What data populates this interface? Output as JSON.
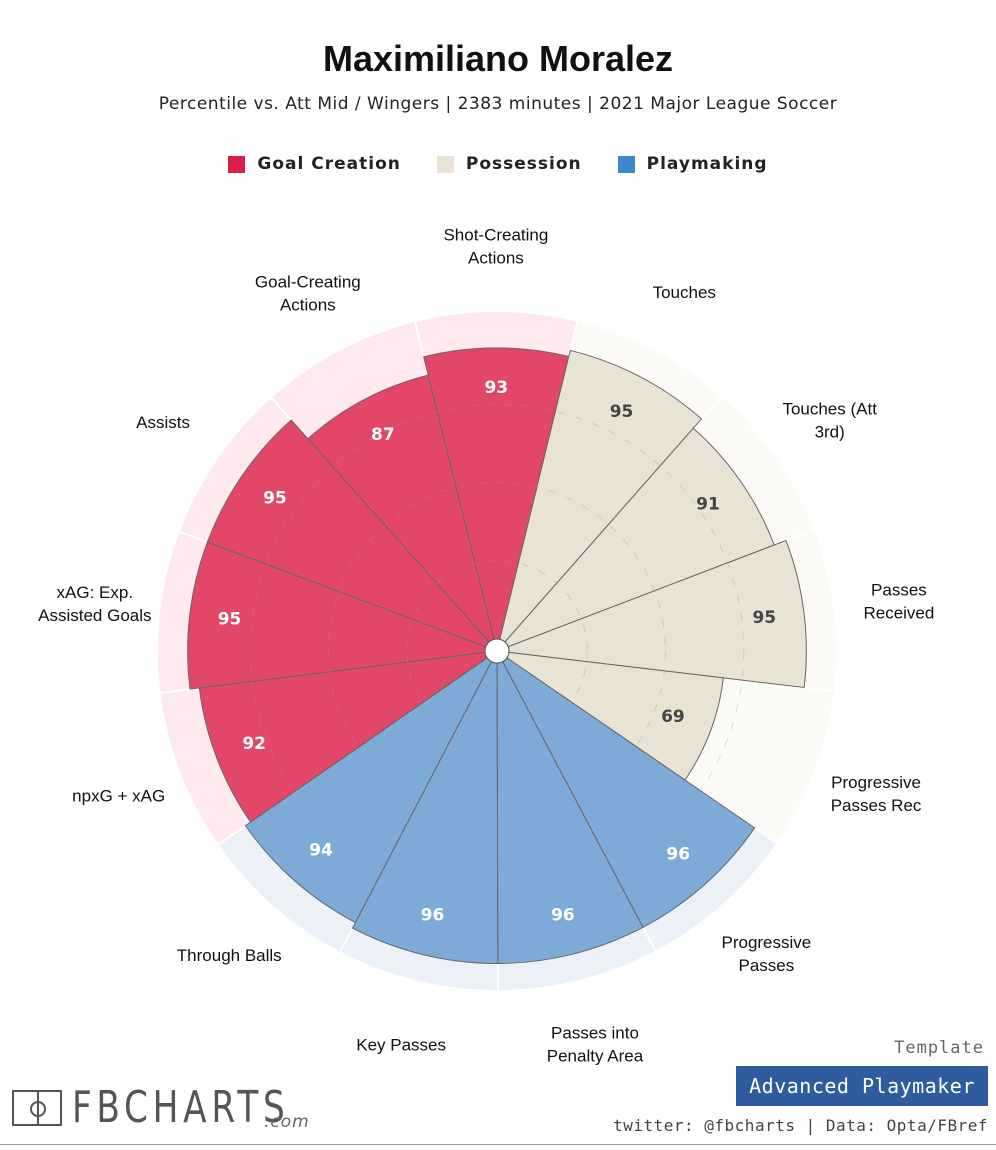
{
  "header": {
    "title": "Maximiliano Moralez",
    "subtitle": "Percentile vs. Att Mid / Wingers | 2383 minutes | 2021 Major League Soccer"
  },
  "legend": [
    {
      "label": "Goal Creation",
      "color": "#dc1e46"
    },
    {
      "label": "Possession",
      "color": "#e8e2d0"
    },
    {
      "label": "Playmaking",
      "color": "#3d87ce"
    }
  ],
  "chart_data": {
    "type": "radar",
    "title": "Maximiliano Moralez",
    "range": [
      0,
      100
    ],
    "categories": [
      {
        "name": "Goal Creation",
        "color": "#dc1e46",
        "bg": "#fde9ee",
        "value_color": "#ffffff"
      },
      {
        "name": "Possession",
        "color": "#e8e3d2",
        "bg": "#fbfaf7",
        "value_color": "#444444"
      },
      {
        "name": "Playmaking",
        "color": "#6399cf",
        "bg": "#ecf1f7",
        "value_color": "#ffffff"
      }
    ],
    "metrics": [
      {
        "label": "Shot-Creating Actions",
        "lines": [
          "Shot-Creating",
          "Actions"
        ],
        "value": 93,
        "category": "Goal Creation"
      },
      {
        "label": "Touches",
        "lines": [
          "Touches"
        ],
        "value": 95,
        "category": "Possession"
      },
      {
        "label": "Touches (Att 3rd)",
        "lines": [
          "Touches (Att",
          "3rd)"
        ],
        "value": 91,
        "category": "Possession"
      },
      {
        "label": "Passes Received",
        "lines": [
          "Passes",
          "Received"
        ],
        "value": 95,
        "category": "Possession"
      },
      {
        "label": "Progressive Passes Rec",
        "lines": [
          "Progressive",
          "Passes Rec"
        ],
        "value": 69,
        "category": "Possession"
      },
      {
        "label": "Progressive Passes",
        "lines": [
          "Progressive",
          "Passes"
        ],
        "value": 96,
        "category": "Playmaking"
      },
      {
        "label": "Passes into Penalty Area",
        "lines": [
          "Passes into",
          "Penalty Area"
        ],
        "value": 96,
        "category": "Playmaking"
      },
      {
        "label": "Key Passes",
        "lines": [
          "Key Passes"
        ],
        "value": 96,
        "category": "Playmaking"
      },
      {
        "label": "Through Balls",
        "lines": [
          "Through Balls"
        ],
        "value": 94,
        "category": "Playmaking"
      },
      {
        "label": "npxG + xAG",
        "lines": [
          "npxG + xAG"
        ],
        "value": 92,
        "category": "Goal Creation"
      },
      {
        "label": "xAG: Exp. Assisted Goals",
        "lines": [
          "xAG: Exp.",
          "Assisted Goals"
        ],
        "value": 95,
        "category": "Goal Creation"
      },
      {
        "label": "Assists",
        "lines": [
          "Assists"
        ],
        "value": 95,
        "category": "Goal Creation"
      },
      {
        "label": "Goal-Creating Actions",
        "lines": [
          "Goal-Creating",
          "Actions"
        ],
        "value": 87,
        "category": "Goal Creation"
      }
    ]
  },
  "footer": {
    "logo_text": "FBCHARTS",
    "logo_suffix": ".com",
    "template_label": "Template",
    "template_name": "Advanced Playmaker",
    "credits": "twitter: @fbcharts | Data: Opta/FBref"
  }
}
